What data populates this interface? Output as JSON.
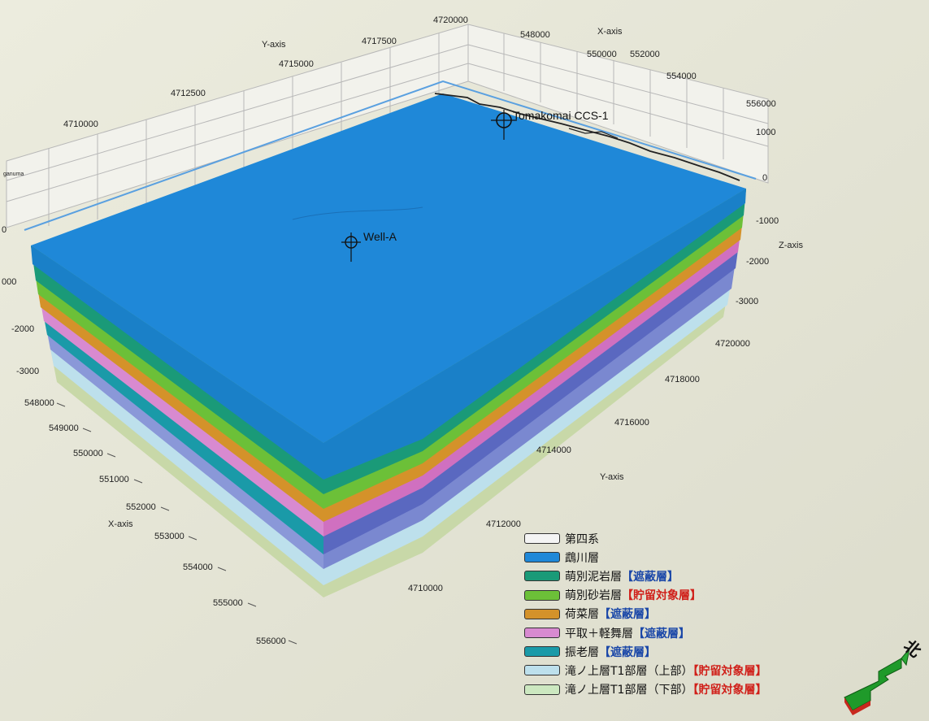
{
  "x_axis": {
    "title": "X-axis",
    "top_ticks": [
      "548000",
      "550000",
      "552000",
      "554000",
      "556000"
    ],
    "left_ticks": [
      "548000",
      "549000",
      "550000",
      "551000",
      "552000",
      "553000",
      "554000",
      "555000",
      "556000"
    ]
  },
  "y_axis": {
    "title": "Y-axis",
    "top_ticks": [
      "4710000",
      "4712500",
      "4715000",
      "4717500",
      "4720000"
    ],
    "right_ticks": [
      "4720000",
      "4718000",
      "4716000",
      "4714000",
      "4712000",
      "4710000"
    ]
  },
  "z_axis": {
    "title": "Z-axis",
    "right_ticks": [
      "1000",
      "0",
      "-1000",
      "-2000",
      "-3000"
    ],
    "left_ticks": [
      "0",
      "000",
      "-2000",
      "-3000"
    ]
  },
  "corner_label": "ganuma",
  "wells": [
    {
      "name": "Well-A"
    },
    {
      "name": "Tomakomai CCS-1"
    }
  ],
  "legend": [
    {
      "name": "第四系",
      "tag": "",
      "tag_color": "",
      "color": "#f4f4f4"
    },
    {
      "name": "鵡川層",
      "tag": "",
      "tag_color": "",
      "color": "#1f88d8"
    },
    {
      "name": "萌別泥岩層",
      "tag": "【遮蔽層】",
      "tag_color": "blue",
      "color": "#1a9a78"
    },
    {
      "name": "萌別砂岩層",
      "tag": "【貯留対象層】",
      "tag_color": "red",
      "color": "#6cc038"
    },
    {
      "name": "荷菜層",
      "tag": "【遮蔽層】",
      "tag_color": "blue",
      "color": "#d4922a"
    },
    {
      "name": "平取＋軽舞層",
      "tag": "【遮蔽層】",
      "tag_color": "blue",
      "color": "#d88ad0"
    },
    {
      "name": "振老層",
      "tag": "【遮蔽層】",
      "tag_color": "blue",
      "color": "#1a9aa8"
    },
    {
      "name": "滝ノ上層T1部層（上部）",
      "tag": "【貯留対象層】",
      "tag_color": "red",
      "color": "#bde0ec"
    },
    {
      "name": "滝ノ上層T1部層（下部）",
      "tag": "【貯留対象層】",
      "tag_color": "red",
      "color": "#cce8c0"
    }
  ],
  "north_label": "北",
  "colors": {
    "top_surface": "#1f88d8",
    "bounding_box": "#5aa0e0",
    "legend_blue_tag": "#1a47a8",
    "legend_red_tag": "#d0201a"
  }
}
